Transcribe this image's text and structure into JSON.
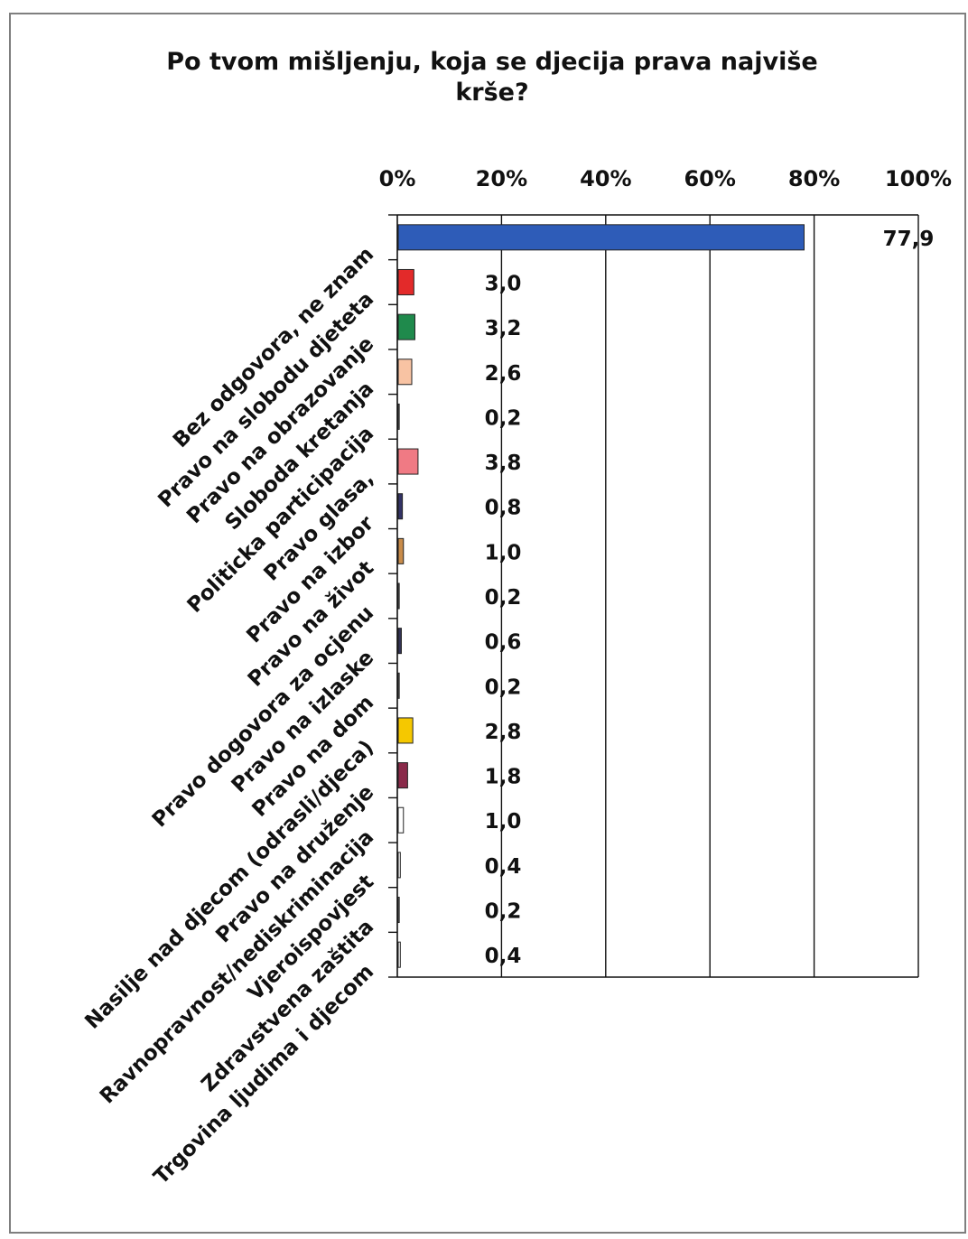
{
  "chart_data": {
    "type": "bar",
    "orientation": "horizontal",
    "title_lines": [
      "Po tvom mišljenju, koja se djecija prava najviše",
      "krše?"
    ],
    "x_ticks": [
      "0%",
      "20%",
      "40%",
      "60%",
      "80%",
      "100%"
    ],
    "xlim": [
      0,
      100
    ],
    "grid": true,
    "categories": [
      "Bez odgovora, ne znam",
      "Pravo na slobodu djeteta",
      "Pravo na obrazovanje",
      "Sloboda kretanja",
      "Politicka participacija",
      "Pravo glasa,",
      "Pravo na izbor",
      "Pravo na život",
      "Pravo dogovora za ocjenu",
      "Pravo na izlaske",
      "Pravo na dom",
      "Nasilje nad djecom (odrasli/djeca)",
      "Pravo na druženje",
      "Ravnopravnost/nediskriminacija",
      "Vjeroispovjest",
      "Zdravstvena zaštita",
      "Trgovina ljudima i djecom"
    ],
    "values": [
      77.9,
      3.0,
      3.2,
      2.6,
      0.2,
      3.8,
      0.8,
      1.0,
      0.2,
      0.6,
      0.2,
      2.8,
      1.8,
      1.0,
      0.4,
      0.2,
      0.4
    ],
    "value_labels": [
      "77,9",
      "3,0",
      "3,2",
      "2,6",
      "0,2",
      "3,8",
      "0,8",
      "1,0",
      "0,2",
      "0,6",
      "0,2",
      "2,8",
      "1,8",
      "1,0",
      "0,4",
      "0,2",
      "0,4"
    ],
    "colors": [
      "#2e5cb8",
      "#e32a2a",
      "#1f8a4c",
      "#f8c3a3",
      "#bfbfbf",
      "#f07a84",
      "#333366",
      "#c98c4a",
      "#cccccc",
      "#333355",
      "#cccccc",
      "#f5c800",
      "#8a2a4a",
      "#ffffff",
      "#ffffff",
      "#ffffff",
      "#ffffff"
    ]
  }
}
